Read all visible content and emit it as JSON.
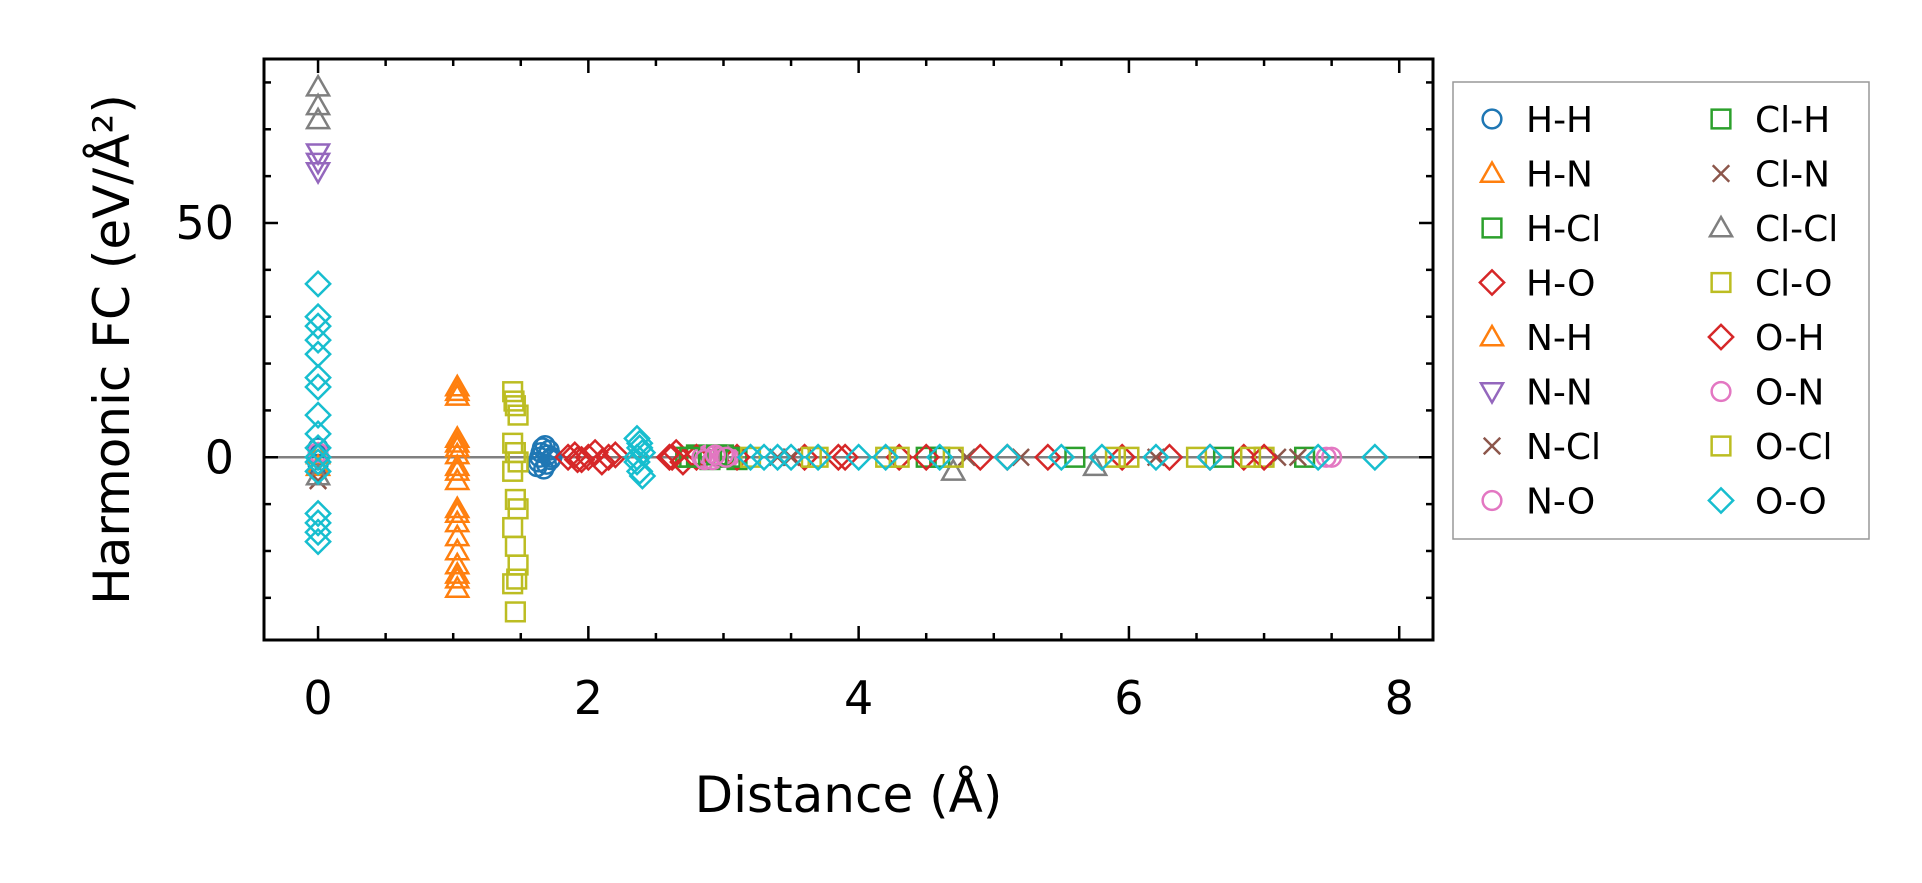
{
  "chart_data": {
    "type": "scatter",
    "title": "",
    "xlabel": "Distance (Å)",
    "ylabel": "Harmonic FC (eV/Å²)",
    "xlim": [
      -0.4,
      8.25
    ],
    "ylim": [
      -39,
      85
    ],
    "xticks": [
      0,
      2,
      4,
      6,
      8
    ],
    "yticks": [
      0,
      50
    ],
    "xtick_labels": [
      "0",
      "2",
      "4",
      "6",
      "8"
    ],
    "ytick_labels": [
      "0",
      "50"
    ],
    "zero_line": 0,
    "legend_position": "outside right",
    "series": [
      {
        "name": "H-H",
        "marker": "circle",
        "color": "#1f77b4",
        "x": [
          0,
          0,
          0,
          1.62,
          1.63,
          1.64,
          1.65,
          1.66,
          1.67,
          1.68,
          1.69,
          1.7,
          1.71,
          1.72,
          1.73
        ],
        "y": [
          0.5,
          -1.5,
          2,
          -2,
          -1,
          0,
          1,
          2,
          -2.5,
          2.5,
          -1.5,
          0.5,
          1.5,
          -0.5,
          0
        ]
      },
      {
        "name": "H-N",
        "marker": "triangle-up",
        "color": "#ff7f0e",
        "x": [
          0,
          0,
          1.03,
          1.03,
          1.03,
          1.03,
          1.03,
          1.03,
          1.03,
          1.03,
          1.03,
          1.03,
          1.03,
          1.03,
          1.03,
          1.03
        ],
        "y": [
          0.5,
          -2,
          15,
          13,
          4,
          2,
          -2,
          -5,
          -11,
          -14,
          -17,
          -20,
          -23,
          -26,
          -28,
          0.5
        ]
      },
      {
        "name": "H-Cl",
        "marker": "square",
        "color": "#2ca02c",
        "x": [
          2.72,
          2.8,
          2.9,
          3.0,
          3.1,
          4.5,
          5.6,
          7.3
        ],
        "y": [
          0,
          0.5,
          -0.5,
          0.5,
          -0.5,
          0,
          0,
          0
        ]
      },
      {
        "name": "H-O",
        "marker": "diamond",
        "color": "#d62728",
        "x": [
          1.85,
          1.9,
          1.95,
          2.0,
          2.05,
          2.1,
          2.15,
          2.2,
          2.6,
          2.65,
          2.7,
          2.8,
          3.1,
          3.6,
          3.85,
          4.3,
          4.9,
          5.4,
          5.95,
          6.3,
          6.85
        ],
        "y": [
          0,
          0.5,
          -0.5,
          0,
          1,
          -1,
          0,
          0.5,
          0,
          1,
          -1,
          0,
          0,
          0,
          0,
          0,
          0,
          0,
          0,
          0,
          0
        ]
      },
      {
        "name": "N-H",
        "marker": "triangle-up",
        "color": "#ff7f0e",
        "x": [
          1.03,
          1.03,
          1.03,
          1.03,
          1.03
        ],
        "y": [
          14,
          3,
          -3,
          -12,
          -25
        ]
      },
      {
        "name": "N-N",
        "marker": "triangle-down",
        "color": "#9467bd",
        "x": [
          0,
          0,
          0
        ],
        "y": [
          65,
          63,
          61
        ]
      },
      {
        "name": "N-Cl",
        "marker": "x",
        "color": "#8c564b",
        "x": [
          0,
          3.4,
          4.8,
          6.2,
          7.1
        ],
        "y": [
          -5,
          0,
          0,
          0,
          0
        ]
      },
      {
        "name": "N-O",
        "marker": "circle",
        "color": "#e377c2",
        "x": [
          0,
          2.84,
          2.88,
          2.92,
          2.96,
          3.0,
          3.04,
          7.46
        ],
        "y": [
          1,
          0,
          0.5,
          -0.5,
          0,
          0.5,
          0,
          0
        ]
      },
      {
        "name": "Cl-H",
        "marker": "square",
        "color": "#2ca02c",
        "x": [
          2.75,
          2.95,
          3.05,
          4.6,
          6.7
        ],
        "y": [
          0,
          0.5,
          0,
          0,
          0
        ]
      },
      {
        "name": "Cl-N",
        "marker": "x",
        "color": "#8c564b",
        "x": [
          3.5,
          5.2,
          7.25
        ],
        "y": [
          0,
          0,
          0
        ]
      },
      {
        "name": "Cl-Cl",
        "marker": "triangle-up",
        "color": "#7f7f7f",
        "x": [
          0,
          0,
          0,
          0,
          4.7,
          5.75
        ],
        "y": [
          79,
          75,
          72,
          -4,
          -3,
          -2
        ]
      },
      {
        "name": "Cl-O",
        "marker": "square",
        "color": "#bcbd22",
        "x": [
          1.44,
          1.46,
          1.48,
          1.44,
          1.46,
          1.48,
          1.44,
          1.46,
          1.48,
          1.44,
          1.46,
          1.48,
          1.44,
          1.46,
          3.2,
          3.7,
          4.3,
          4.7,
          5.9,
          6.5,
          7.0
        ],
        "y": [
          14,
          11,
          9,
          3,
          1,
          -1,
          -3,
          -9,
          -11,
          -15,
          -19,
          -23,
          -27,
          -33,
          0,
          0,
          0,
          0,
          0,
          0,
          0
        ]
      },
      {
        "name": "O-H",
        "marker": "diamond",
        "color": "#d62728",
        "x": [
          1.92,
          2.62,
          3.9,
          4.5,
          5.1,
          6.6,
          7.0
        ],
        "y": [
          -0.5,
          0,
          0,
          0,
          0,
          0,
          0
        ]
      },
      {
        "name": "O-N",
        "marker": "circle",
        "color": "#e377c2",
        "x": [
          2.86,
          2.94,
          3.02,
          7.5
        ],
        "y": [
          -0.5,
          0.5,
          0,
          0
        ]
      },
      {
        "name": "O-Cl",
        "marker": "square",
        "color": "#bcbd22",
        "x": [
          1.45,
          1.47,
          3.65,
          4.2,
          6.0,
          6.9
        ],
        "y": [
          12,
          -26,
          0,
          0,
          0,
          0
        ]
      },
      {
        "name": "O-O",
        "marker": "diamond",
        "color": "#17becf",
        "x": [
          0,
          0,
          0,
          0,
          0,
          0,
          0,
          0,
          0,
          0,
          0,
          0,
          0,
          0,
          0,
          0,
          0,
          0,
          2.36,
          2.38,
          2.4,
          2.36,
          2.38,
          2.4,
          2.36,
          2.38,
          3.2,
          3.3,
          3.4,
          3.5,
          3.7,
          4.0,
          4.2,
          4.6,
          5.1,
          5.5,
          5.8,
          6.2,
          6.6,
          7.4,
          7.82
        ],
        "y": [
          37,
          30,
          28,
          25,
          22,
          17,
          15,
          9,
          5,
          2,
          0,
          -1,
          -3,
          -12,
          -14,
          -16,
          -18,
          0,
          4,
          3,
          1,
          -1,
          -3,
          -4,
          0,
          2,
          0,
          0,
          0,
          0,
          0,
          0,
          0,
          0,
          0,
          0,
          0,
          0,
          0,
          0,
          0
        ]
      }
    ]
  }
}
